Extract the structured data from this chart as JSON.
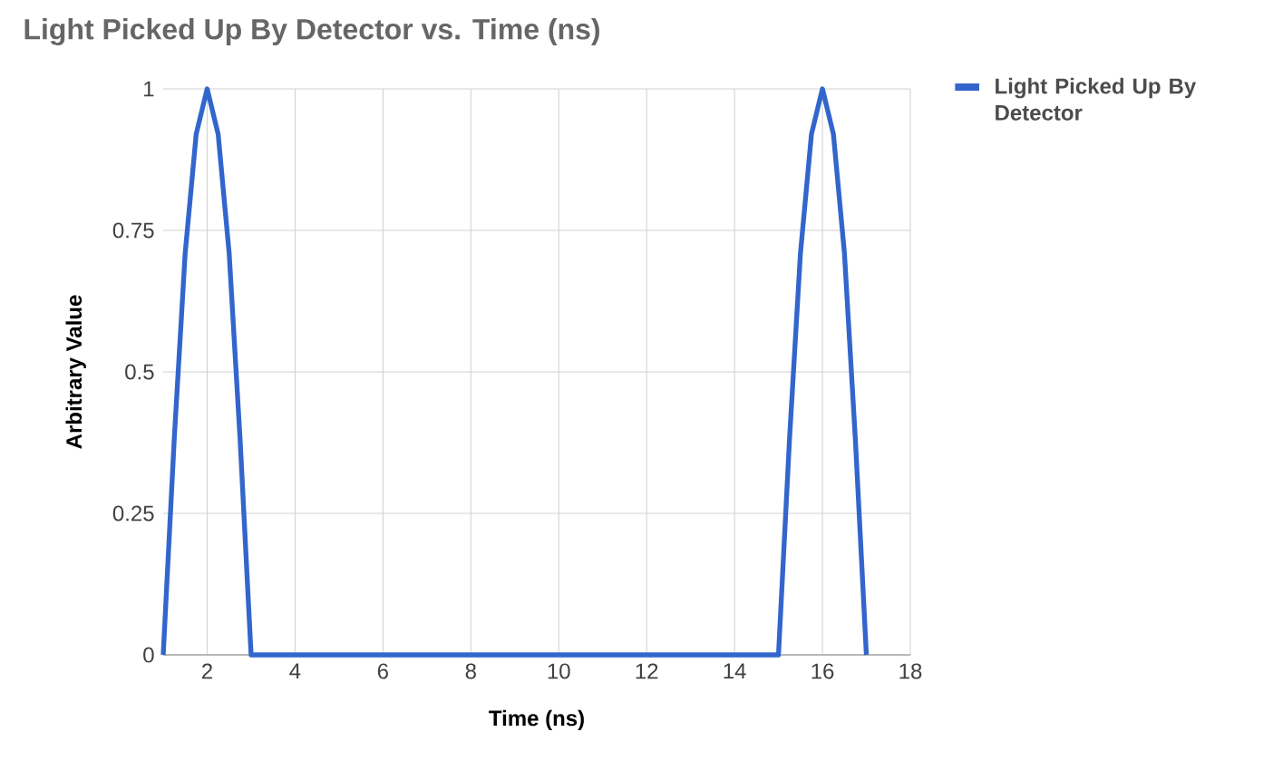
{
  "chart_data": {
    "type": "line",
    "title": "Light Picked Up By Detector vs. Time (ns)",
    "xlabel": "Time (ns)",
    "ylabel": "Arbitrary Value",
    "x": [
      1,
      1.25,
      1.5,
      1.75,
      2,
      2.25,
      2.5,
      2.75,
      3,
      4,
      6,
      8,
      10,
      12,
      14,
      15,
      15.25,
      15.5,
      15.75,
      16,
      16.25,
      16.5,
      16.75,
      17
    ],
    "series": [
      {
        "name": "Light Picked Up By Detector",
        "color": "#3366cc",
        "values": [
          0,
          0.38,
          0.71,
          0.92,
          1,
          0.92,
          0.71,
          0.38,
          0,
          0,
          0,
          0,
          0,
          0,
          0,
          0,
          0.38,
          0.71,
          0.92,
          1,
          0.92,
          0.71,
          0.38,
          0
        ]
      }
    ],
    "xlim": [
      1,
      18
    ],
    "xticks": [
      2,
      4,
      6,
      8,
      10,
      12,
      14,
      16,
      18
    ],
    "ylim": [
      0,
      1
    ],
    "yticks": [
      0,
      0.25,
      0.5,
      0.75,
      1
    ],
    "grid": true,
    "legend": "top right",
    "marker": "none",
    "line_style": "solid"
  }
}
